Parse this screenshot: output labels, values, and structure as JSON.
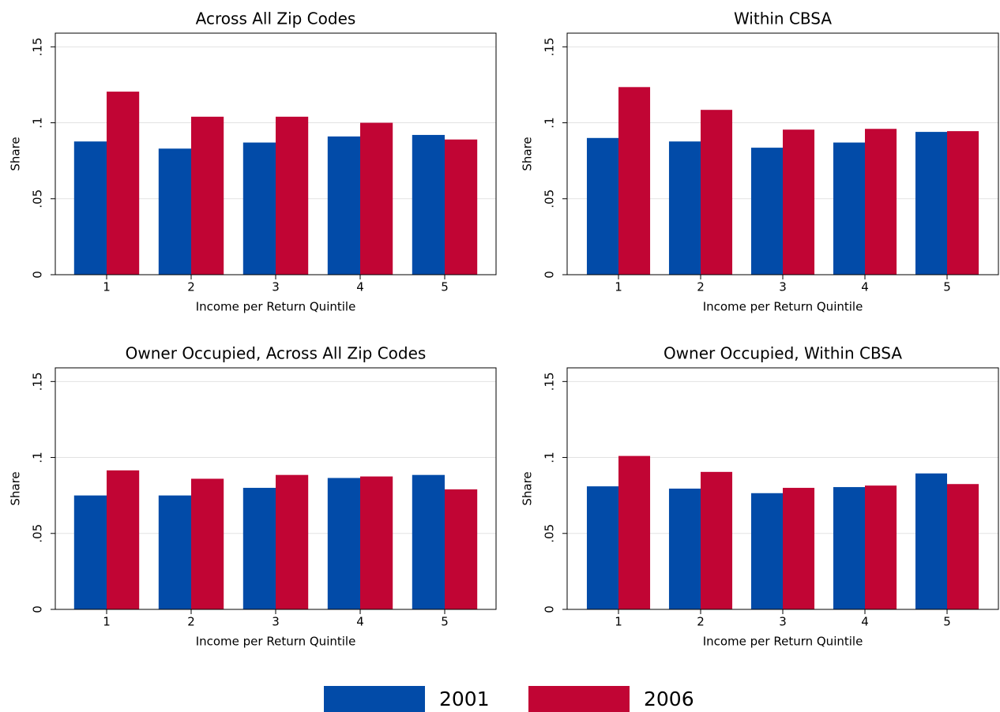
{
  "chart_data": [
    {
      "type": "bar",
      "title": "Across All Zip Codes",
      "x_label": "Income per Return Quintile",
      "y_label": "Share",
      "categories": [
        "1",
        "2",
        "3",
        "4",
        "5"
      ],
      "series": [
        {
          "name": "2001",
          "color": "#024ba8",
          "values": [
            0.0877,
            0.083,
            0.087,
            0.091,
            0.092
          ]
        },
        {
          "name": "2006",
          "color": "#c10534",
          "values": [
            0.1205,
            0.104,
            0.104,
            0.1,
            0.089
          ]
        }
      ],
      "ylim": [
        0,
        0.159
      ],
      "yticks": [
        0,
        {
          "value": 0.05,
          "label": ".05"
        },
        {
          "value": 0.1,
          "label": ".1"
        },
        {
          "value": 0.15,
          "label": ".15"
        }
      ],
      "grid": true
    },
    {
      "type": "bar",
      "title": "Within CBSA",
      "x_label": "Income per Return Quintile",
      "y_label": "Share",
      "categories": [
        "1",
        "2",
        "3",
        "4",
        "5"
      ],
      "series": [
        {
          "color": "#024ba8",
          "values": [
            0.09,
            0.0877,
            0.0836,
            0.087,
            0.094
          ]
        },
        {
          "color": "#c10534",
          "values": [
            0.1235,
            0.1085,
            0.0955,
            0.096,
            0.0945
          ]
        }
      ],
      "ylim": [
        0,
        0.159
      ],
      "yticks": [
        0,
        {
          "value": 0.05,
          "label": ".05"
        },
        {
          "value": 0.1,
          "label": ".1"
        },
        {
          "value": 0.15,
          "label": ".15"
        }
      ],
      "grid": true
    },
    {
      "type": "bar",
      "title": "Owner Occupied, Across All Zip Codes",
      "x_label": "Income per Return Quintile",
      "y_label": "Share",
      "categories": [
        "1",
        "2",
        "3",
        "4",
        "5"
      ],
      "series": [
        {
          "color": "#024ba8",
          "values": [
            0.075,
            0.075,
            0.08,
            0.0865,
            0.0885
          ]
        },
        {
          "color": "#c10534",
          "values": [
            0.0915,
            0.086,
            0.0885,
            0.0875,
            0.079
          ]
        }
      ],
      "ylim": [
        0,
        0.159
      ],
      "yticks": [
        0,
        {
          "value": 0.05,
          "label": ".05"
        },
        {
          "value": 0.1,
          "label": ".1"
        },
        {
          "value": 0.15,
          "label": ".15"
        }
      ],
      "grid": true
    },
    {
      "type": "bar",
      "title": "Owner Occupied, Within CBSA",
      "x_label": "Income per Return Quintile",
      "y_label": "Share",
      "categories": [
        "1",
        "2",
        "3",
        "4",
        "5"
      ],
      "series": [
        {
          "color": "#024ba8",
          "values": [
            0.081,
            0.0795,
            0.0765,
            0.0805,
            0.0895
          ]
        },
        {
          "color": "#c10534",
          "values": [
            0.101,
            0.0905,
            0.08,
            0.0815,
            0.0825
          ]
        }
      ],
      "ylim": [
        0,
        0.159
      ],
      "yticks": [
        0,
        {
          "value": 0.05,
          "label": ".05"
        },
        {
          "value": 0.1,
          "label": ".1"
        },
        {
          "value": 0.15,
          "label": ".15"
        }
      ],
      "grid": true
    }
  ]
}
